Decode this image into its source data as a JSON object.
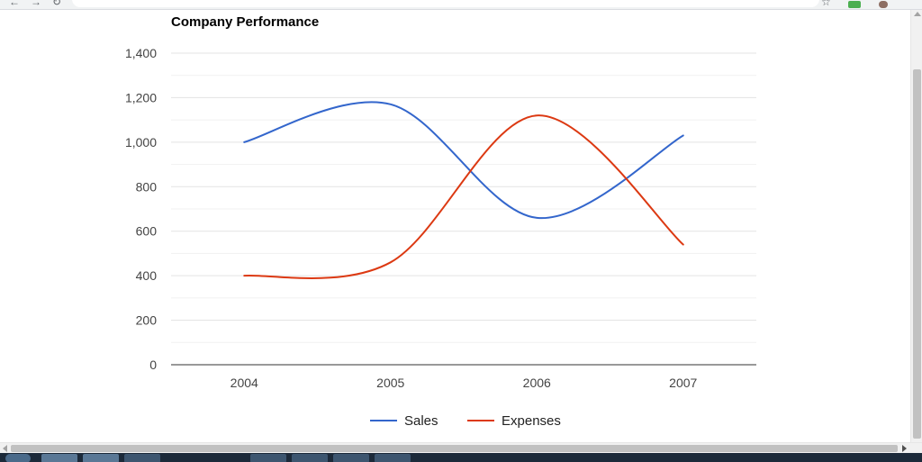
{
  "chart_data": {
    "type": "line",
    "title": "Company Performance",
    "x": [
      "2004",
      "2005",
      "2006",
      "2007"
    ],
    "series": [
      {
        "name": "Sales",
        "color": "#3366cc",
        "values": [
          1000,
          1170,
          660,
          1030
        ]
      },
      {
        "name": "Expenses",
        "color": "#dc3912",
        "values": [
          400,
          460,
          1120,
          540
        ]
      }
    ],
    "y_ticks": [
      "0",
      "200",
      "400",
      "600",
      "800",
      "1,000",
      "1,200",
      "1,400"
    ],
    "ylim": [
      0,
      1400
    ],
    "grid": true,
    "legend_position": "bottom",
    "curve": "smooth"
  },
  "icons": {
    "browser_nav": [
      "back-icon",
      "forward-icon",
      "reload-icon"
    ],
    "toolbar": [
      "bookmark-star-icon",
      "extension-icon",
      "profile-avatar-icon"
    ],
    "taskbar": [
      "start-button-icon"
    ]
  },
  "colors": {
    "gridline": "#e3e3e3",
    "baseline": "#333333",
    "axis_text": "#444444",
    "title_text": "#000000"
  }
}
